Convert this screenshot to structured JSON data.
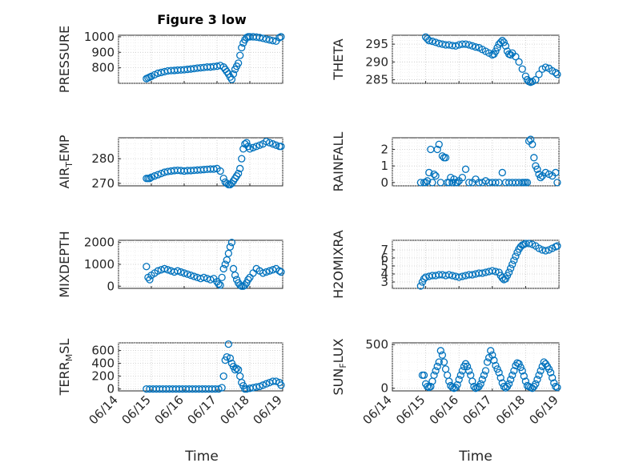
{
  "figure": {
    "title": "Figure 3 low",
    "xlabel": "Time"
  },
  "colors": {
    "series": "#0072BD",
    "axis": "#262626",
    "background": "#ffffff"
  },
  "chart_data": [
    {
      "type": "scatter",
      "id": "pressure",
      "ylabel": "PRESSURE",
      "ylim": [
        700,
        1010
      ],
      "yticks": [
        800,
        900,
        1000
      ],
      "xlim": [
        "06/14",
        "06/19"
      ],
      "xticks": [
        "06/14",
        "06/15",
        "06/16",
        "06/17",
        "06/18",
        "06/19"
      ],
      "grid": true,
      "x_days": [
        0.85,
        0.9,
        0.95,
        1.0,
        1.1,
        1.2,
        1.3,
        1.4,
        1.5,
        1.6,
        1.7,
        1.8,
        1.9,
        2.0,
        2.1,
        2.2,
        2.3,
        2.4,
        2.5,
        2.6,
        2.7,
        2.8,
        2.9,
        3.0,
        3.1,
        3.2,
        3.25,
        3.3,
        3.35,
        3.4,
        3.45,
        3.5,
        3.55,
        3.6,
        3.65,
        3.7,
        3.75,
        3.8,
        3.85,
        3.9,
        3.95,
        4.0,
        4.1,
        4.2,
        4.3,
        4.4,
        4.5,
        4.6,
        4.7,
        4.8,
        4.9,
        4.95
      ],
      "values": [
        730,
        735,
        740,
        745,
        755,
        765,
        770,
        775,
        780,
        782,
        783,
        785,
        786,
        788,
        790,
        792,
        795,
        798,
        800,
        802,
        805,
        805,
        808,
        810,
        815,
        805,
        790,
        775,
        760,
        740,
        725,
        760,
        790,
        810,
        830,
        880,
        930,
        960,
        980,
        995,
        1000,
        1000,
        1000,
        998,
        995,
        990,
        985,
        980,
        975,
        972,
        995,
        1000
      ]
    },
    {
      "type": "scatter",
      "id": "theta",
      "ylabel": "THETA",
      "ylim": [
        284,
        297.5
      ],
      "yticks": [
        285,
        290,
        295
      ],
      "xlim": [
        "06/14",
        "06/19"
      ],
      "xticks": [
        "06/14",
        "06/15",
        "06/16",
        "06/17",
        "06/18",
        "06/19"
      ],
      "grid": true,
      "x_days": [
        1.0,
        1.05,
        1.1,
        1.2,
        1.3,
        1.4,
        1.5,
        1.6,
        1.7,
        1.8,
        1.9,
        2.0,
        2.1,
        2.2,
        2.3,
        2.4,
        2.5,
        2.6,
        2.7,
        2.8,
        2.9,
        3.0,
        3.05,
        3.1,
        3.15,
        3.2,
        3.25,
        3.3,
        3.35,
        3.4,
        3.45,
        3.5,
        3.55,
        3.6,
        3.7,
        3.8,
        3.9,
        4.0,
        4.05,
        4.1,
        4.15,
        4.2,
        4.3,
        4.4,
        4.5,
        4.6,
        4.7,
        4.8,
        4.9,
        4.95
      ],
      "values": [
        297,
        296.5,
        296,
        295.8,
        295.5,
        295.2,
        295,
        294.8,
        294.8,
        294.6,
        294.5,
        294.8,
        295,
        295,
        294.8,
        294.5,
        294.2,
        294,
        293.5,
        293,
        292.5,
        292,
        292.2,
        293,
        294,
        295,
        295.5,
        296,
        295.5,
        294.5,
        293,
        292.2,
        292,
        292.5,
        291.5,
        290,
        288,
        286,
        285,
        284.5,
        284.3,
        284.5,
        285,
        286.5,
        288,
        288.5,
        288.2,
        287.5,
        287,
        286.5
      ]
    },
    {
      "type": "scatter",
      "id": "air_temp",
      "ylabel": "AIR_TEMP",
      "ylim": [
        269,
        288.5
      ],
      "yticks": [
        270,
        280
      ],
      "xlim": [
        "06/14",
        "06/19"
      ],
      "xticks": [
        "06/14",
        "06/15",
        "06/16",
        "06/17",
        "06/18",
        "06/19"
      ],
      "grid": true,
      "x_days": [
        0.85,
        0.9,
        0.95,
        1.0,
        1.1,
        1.2,
        1.3,
        1.4,
        1.5,
        1.6,
        1.7,
        1.8,
        1.9,
        2.0,
        2.1,
        2.2,
        2.3,
        2.4,
        2.5,
        2.6,
        2.7,
        2.8,
        2.9,
        3.0,
        3.1,
        3.2,
        3.25,
        3.3,
        3.35,
        3.4,
        3.45,
        3.5,
        3.55,
        3.6,
        3.65,
        3.7,
        3.75,
        3.8,
        3.85,
        3.9,
        3.95,
        4.0,
        4.1,
        4.2,
        4.3,
        4.4,
        4.5,
        4.6,
        4.7,
        4.8,
        4.9,
        4.95
      ],
      "values": [
        272,
        272,
        272,
        272.5,
        273,
        273.5,
        274,
        274.5,
        274.8,
        275,
        275.2,
        275.3,
        275.2,
        275,
        275.2,
        275.2,
        275.3,
        275.4,
        275.5,
        275.6,
        275.7,
        275.8,
        275.8,
        276,
        275,
        272,
        270.5,
        270,
        269.5,
        269.5,
        270,
        271,
        272,
        273,
        274,
        276,
        280,
        284,
        286,
        286.5,
        285,
        284,
        284.5,
        285,
        285.5,
        286,
        287,
        286.5,
        286,
        285.5,
        285,
        285
      ]
    },
    {
      "type": "scatter",
      "id": "rainfall",
      "ylabel": "RAINFALL",
      "ylim": [
        -0.2,
        2.7
      ],
      "yticks": [
        0,
        1,
        2
      ],
      "xlim": [
        "06/14",
        "06/19"
      ],
      "xticks": [
        "06/14",
        "06/15",
        "06/16",
        "06/17",
        "06/18",
        "06/19"
      ],
      "grid": true,
      "x_days": [
        0.85,
        0.95,
        1.0,
        1.05,
        1.1,
        1.15,
        1.2,
        1.25,
        1.3,
        1.35,
        1.4,
        1.45,
        1.5,
        1.55,
        1.6,
        1.65,
        1.7,
        1.75,
        1.8,
        1.85,
        1.9,
        1.95,
        2.0,
        2.1,
        2.2,
        2.3,
        2.4,
        2.5,
        2.6,
        2.7,
        2.8,
        2.9,
        3.0,
        3.1,
        3.2,
        3.3,
        3.4,
        3.5,
        3.6,
        3.7,
        3.8,
        3.9,
        3.95,
        4.0,
        4.05,
        4.1,
        4.15,
        4.2,
        4.25,
        4.3,
        4.35,
        4.4,
        4.45,
        4.5,
        4.6,
        4.7,
        4.8,
        4.9,
        4.95
      ],
      "values": [
        0,
        0,
        0,
        0.1,
        0.6,
        2.0,
        0,
        0.5,
        0.4,
        2.0,
        2.3,
        0,
        1.6,
        1.5,
        1.5,
        0,
        0,
        0.3,
        0,
        0.2,
        0,
        0,
        0.1,
        0.3,
        0.8,
        0,
        0,
        0.2,
        0,
        0,
        0.1,
        0,
        0,
        0,
        0,
        0.6,
        0,
        0,
        0,
        0,
        0,
        0,
        0,
        0,
        0,
        2.5,
        2.6,
        2.3,
        1.5,
        1.0,
        0.8,
        0.5,
        0.3,
        0.4,
        0.6,
        0.5,
        0.4,
        0.6,
        0
      ]
    },
    {
      "type": "scatter",
      "id": "mixdepth",
      "ylabel": "MIXDEPTH",
      "ylim": [
        -100,
        2100
      ],
      "yticks": [
        0,
        1000,
        2000
      ],
      "xlim": [
        "06/14",
        "06/19"
      ],
      "xticks": [
        "06/14",
        "06/15",
        "06/16",
        "06/17",
        "06/18",
        "06/19"
      ],
      "grid": true,
      "x_days": [
        0.85,
        0.9,
        0.95,
        1.0,
        1.1,
        1.2,
        1.3,
        1.4,
        1.5,
        1.6,
        1.7,
        1.8,
        1.9,
        2.0,
        2.1,
        2.2,
        2.3,
        2.4,
        2.5,
        2.6,
        2.7,
        2.8,
        2.9,
        3.0,
        3.05,
        3.1,
        3.15,
        3.2,
        3.25,
        3.3,
        3.35,
        3.4,
        3.45,
        3.5,
        3.55,
        3.6,
        3.65,
        3.7,
        3.75,
        3.8,
        3.85,
        3.9,
        3.95,
        4.0,
        4.1,
        4.2,
        4.3,
        4.4,
        4.5,
        4.6,
        4.7,
        4.8,
        4.9,
        4.95
      ],
      "values": [
        900,
        400,
        300,
        500,
        600,
        700,
        750,
        800,
        750,
        700,
        650,
        700,
        650,
        600,
        550,
        500,
        450,
        400,
        350,
        400,
        350,
        300,
        350,
        200,
        100,
        50,
        400,
        800,
        1000,
        1200,
        1500,
        1800,
        2000,
        800,
        500,
        300,
        150,
        50,
        0,
        0,
        50,
        150,
        300,
        400,
        600,
        800,
        700,
        600,
        650,
        700,
        750,
        800,
        700,
        650
      ]
    },
    {
      "type": "scatter",
      "id": "h2omixra",
      "ylabel": "H2OMIXRA",
      "ylim": [
        2.2,
        8.2
      ],
      "yticks": [
        3,
        4,
        5,
        6,
        7
      ],
      "xlim": [
        "06/14",
        "06/19"
      ],
      "xticks": [
        "06/14",
        "06/15",
        "06/16",
        "06/17",
        "06/18",
        "06/19"
      ],
      "grid": true,
      "x_days": [
        0.85,
        0.9,
        0.95,
        1.0,
        1.1,
        1.2,
        1.3,
        1.4,
        1.5,
        1.6,
        1.7,
        1.8,
        1.9,
        2.0,
        2.1,
        2.2,
        2.3,
        2.4,
        2.5,
        2.6,
        2.7,
        2.8,
        2.9,
        3.0,
        3.1,
        3.2,
        3.25,
        3.3,
        3.35,
        3.4,
        3.45,
        3.5,
        3.55,
        3.6,
        3.65,
        3.7,
        3.75,
        3.8,
        3.85,
        3.9,
        3.95,
        4.0,
        4.1,
        4.2,
        4.3,
        4.4,
        4.5,
        4.6,
        4.7,
        4.8,
        4.9,
        4.95
      ],
      "values": [
        2.5,
        3.0,
        3.4,
        3.6,
        3.7,
        3.8,
        3.8,
        3.9,
        3.9,
        3.8,
        3.9,
        3.8,
        3.7,
        3.6,
        3.7,
        3.8,
        3.9,
        3.9,
        4.0,
        4.1,
        4.1,
        4.2,
        4.3,
        4.4,
        4.3,
        4.2,
        3.8,
        3.5,
        3.3,
        3.4,
        3.8,
        4.2,
        4.7,
        5.2,
        5.7,
        6.2,
        6.7,
        7.1,
        7.4,
        7.6,
        7.7,
        7.8,
        7.8,
        7.7,
        7.5,
        7.2,
        7.0,
        6.9,
        7.0,
        7.2,
        7.4,
        7.5
      ]
    },
    {
      "type": "scatter",
      "id": "terr_msl",
      "ylabel": "TERR_MSL",
      "ylim": [
        -30,
        720
      ],
      "yticks": [
        0,
        200,
        400,
        600
      ],
      "xlim": [
        "06/14",
        "06/19"
      ],
      "xticks": [
        "06/14",
        "06/15",
        "06/16",
        "06/17",
        "06/18",
        "06/19"
      ],
      "grid": true,
      "x_days": [
        0.85,
        0.95,
        1.05,
        1.15,
        1.25,
        1.35,
        1.45,
        1.55,
        1.65,
        1.75,
        1.85,
        1.95,
        2.05,
        2.15,
        2.25,
        2.35,
        2.45,
        2.55,
        2.65,
        2.75,
        2.85,
        2.95,
        3.05,
        3.15,
        3.2,
        3.25,
        3.3,
        3.35,
        3.4,
        3.45,
        3.5,
        3.55,
        3.6,
        3.65,
        3.7,
        3.75,
        3.8,
        3.85,
        3.9,
        4.0,
        4.1,
        4.2,
        4.3,
        4.4,
        4.5,
        4.6,
        4.7,
        4.8,
        4.9,
        4.95
      ],
      "values": [
        0,
        0,
        0,
        0,
        0,
        0,
        0,
        0,
        0,
        0,
        0,
        0,
        0,
        0,
        0,
        0,
        0,
        0,
        0,
        0,
        0,
        0,
        0,
        20,
        200,
        450,
        500,
        700,
        480,
        400,
        350,
        300,
        320,
        300,
        200,
        100,
        50,
        0,
        0,
        10,
        20,
        30,
        40,
        60,
        80,
        100,
        120,
        120,
        100,
        60
      ]
    },
    {
      "type": "scatter",
      "id": "sun_flux",
      "ylabel": "SUN_FLUX",
      "ylim": [
        -30,
        520
      ],
      "yticks": [
        0,
        500
      ],
      "xlim": [
        "06/14",
        "06/19"
      ],
      "xticks": [
        "06/14",
        "06/15",
        "06/16",
        "06/17",
        "06/18",
        "06/19"
      ],
      "grid": true,
      "x_days": [
        0.9,
        0.95,
        1.0,
        1.05,
        1.1,
        1.15,
        1.2,
        1.25,
        1.3,
        1.35,
        1.4,
        1.45,
        1.5,
        1.55,
        1.6,
        1.65,
        1.7,
        1.75,
        1.8,
        1.85,
        1.9,
        1.95,
        2.0,
        2.05,
        2.1,
        2.15,
        2.2,
        2.25,
        2.3,
        2.35,
        2.4,
        2.45,
        2.5,
        2.55,
        2.6,
        2.65,
        2.7,
        2.75,
        2.8,
        2.85,
        2.9,
        2.95,
        3.0,
        3.05,
        3.1,
        3.15,
        3.2,
        3.25,
        3.3,
        3.35,
        3.4,
        3.45,
        3.5,
        3.55,
        3.6,
        3.65,
        3.7,
        3.75,
        3.8,
        3.85,
        3.9,
        3.95,
        4.0,
        4.05,
        4.1,
        4.15,
        4.2,
        4.25,
        4.3,
        4.35,
        4.4,
        4.45,
        4.5,
        4.55,
        4.6,
        4.65,
        4.7,
        4.75,
        4.8,
        4.85,
        4.9,
        4.95
      ],
      "values": [
        150,
        150,
        50,
        20,
        10,
        20,
        80,
        150,
        200,
        250,
        300,
        430,
        380,
        300,
        220,
        150,
        80,
        30,
        10,
        0,
        10,
        40,
        100,
        150,
        200,
        250,
        280,
        250,
        200,
        150,
        80,
        20,
        0,
        10,
        20,
        50,
        100,
        150,
        200,
        300,
        350,
        430,
        380,
        320,
        260,
        220,
        180,
        120,
        60,
        20,
        5,
        20,
        50,
        100,
        150,
        200,
        260,
        290,
        280,
        240,
        200,
        140,
        80,
        30,
        20,
        10,
        0,
        20,
        50,
        100,
        150,
        200,
        250,
        300,
        280,
        250,
        220,
        180,
        120,
        60,
        20,
        10
      ]
    }
  ]
}
